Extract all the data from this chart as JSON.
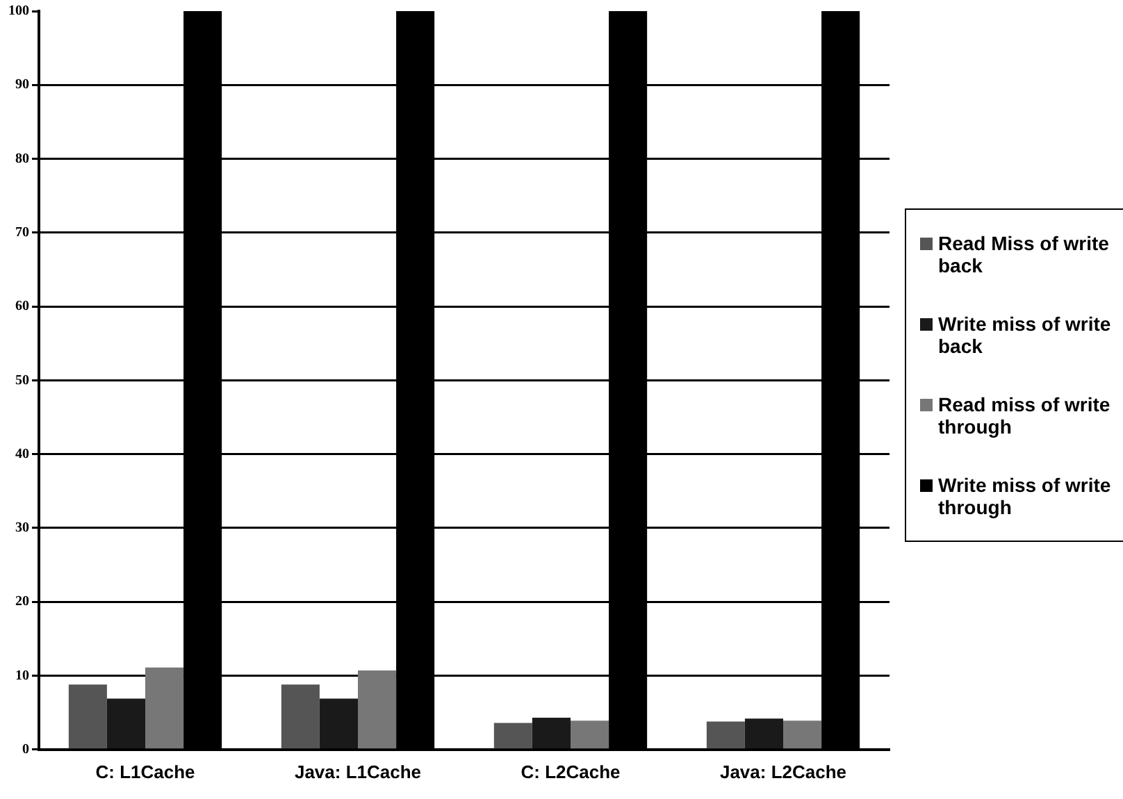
{
  "chart_data": {
    "type": "bar",
    "categories": [
      "C: L1Cache",
      "Java: L1Cache",
      "C: L2Cache",
      "Java: L2Cache"
    ],
    "series": [
      {
        "name": "Read Miss of write back",
        "color": "#555555",
        "values": [
          8.8,
          8.8,
          3.6,
          3.8
        ]
      },
      {
        "name": "Write miss of write back",
        "color": "#1a1a1a",
        "values": [
          6.9,
          6.9,
          4.3,
          4.2
        ]
      },
      {
        "name": "Read miss of write through",
        "color": "#777777",
        "values": [
          11.1,
          10.7,
          3.9,
          3.9
        ]
      },
      {
        "name": "Write miss of write through",
        "color": "#000000",
        "values": [
          100,
          100,
          100,
          100
        ]
      }
    ],
    "ylim": [
      0,
      100
    ],
    "yticks": [
      0,
      10,
      20,
      30,
      40,
      50,
      60,
      70,
      80,
      90,
      100
    ],
    "grid": "y",
    "legend": "right"
  }
}
